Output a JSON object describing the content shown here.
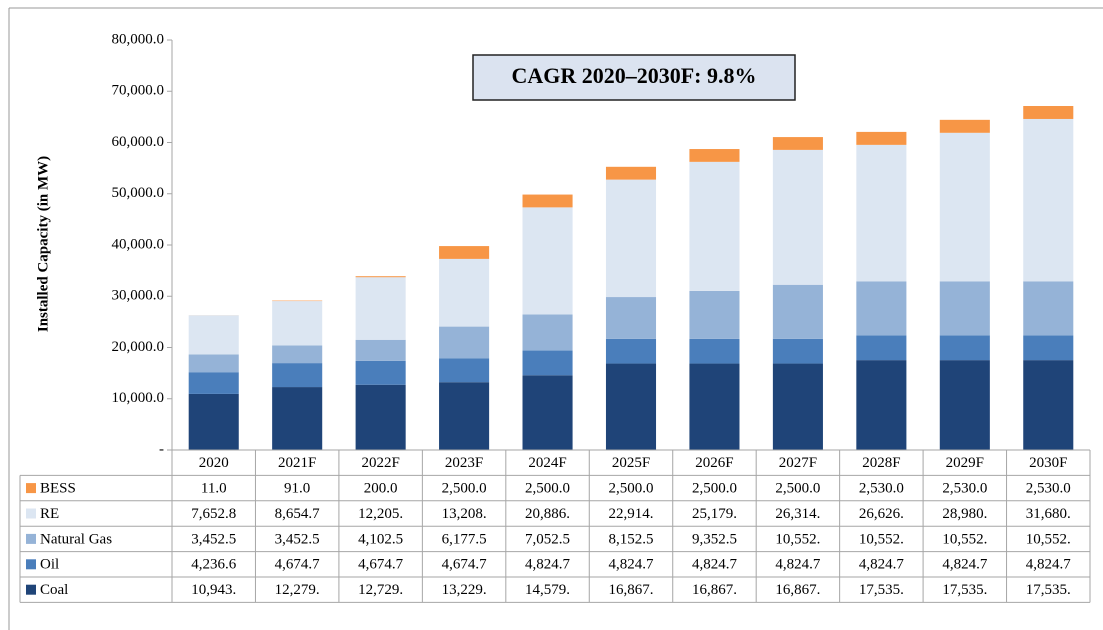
{
  "chart_data": {
    "type": "bar",
    "stacked": true,
    "annotation": "CAGR 2020–2030F: 9.8%",
    "y_label": "Installed Capacity (in MW)",
    "categories": [
      "2020",
      "2021F",
      "2022F",
      "2023F",
      "2024F",
      "2025F",
      "2026F",
      "2027F",
      "2028F",
      "2029F",
      "2030F"
    ],
    "ylim": [
      0,
      80000
    ],
    "yticks": [
      {
        "value": 0,
        "label": "-"
      },
      {
        "value": 10000,
        "label": "10,000.0"
      },
      {
        "value": 20000,
        "label": "20,000.0"
      },
      {
        "value": 30000,
        "label": "30,000.0"
      },
      {
        "value": 40000,
        "label": "40,000.0"
      },
      {
        "value": 50000,
        "label": "50,000.0"
      },
      {
        "value": 60000,
        "label": "60,000.0"
      },
      {
        "value": 70000,
        "label": "70,000.0"
      },
      {
        "value": 80000,
        "label": "80,000.0"
      }
    ],
    "series": [
      {
        "name": "Coal",
        "color": "#1f4478",
        "values": [
          10943,
          12279,
          12729,
          13229,
          14579,
          16867,
          16867,
          16867,
          17535,
          17535,
          17535
        ],
        "value_labels": [
          "10,943.",
          "12,279.",
          "12,729.",
          "13,229.",
          "14,579.",
          "16,867.",
          "16,867.",
          "16,867.",
          "17,535.",
          "17,535.",
          "17,535."
        ]
      },
      {
        "name": "Oil",
        "color": "#4a7ebb",
        "values": [
          4236.6,
          4674.7,
          4674.7,
          4674.7,
          4824.7,
          4824.7,
          4824.7,
          4824.7,
          4824.7,
          4824.7,
          4824.7
        ],
        "value_labels": [
          "4,236.6",
          "4,674.7",
          "4,674.7",
          "4,674.7",
          "4,824.7",
          "4,824.7",
          "4,824.7",
          "4,824.7",
          "4,824.7",
          "4,824.7",
          "4,824.7"
        ]
      },
      {
        "name": "Natural Gas",
        "color": "#95b3d7",
        "values": [
          3452.5,
          3452.5,
          4102.5,
          6177.5,
          7052.5,
          8152.5,
          9352.5,
          10552,
          10552,
          10552,
          10552
        ],
        "value_labels": [
          "3,452.5",
          "3,452.5",
          "4,102.5",
          "6,177.5",
          "7,052.5",
          "8,152.5",
          "9,352.5",
          "10,552.",
          "10,552.",
          "10,552.",
          "10,552."
        ]
      },
      {
        "name": "RE",
        "color": "#dce6f2",
        "values": [
          7652.8,
          8654.7,
          12205,
          13208,
          20886,
          22914,
          25179,
          26314,
          26626,
          28980,
          31680
        ],
        "value_labels": [
          "7,652.8",
          "8,654.7",
          "12,205.",
          "13,208.",
          "20,886.",
          "22,914.",
          "25,179.",
          "26,314.",
          "26,626.",
          "28,980.",
          "31,680."
        ]
      },
      {
        "name": "BESS",
        "color": "#f79646",
        "values": [
          11,
          91,
          200,
          2500,
          2500,
          2500,
          2500,
          2500,
          2530,
          2530,
          2530
        ],
        "value_labels": [
          "11.0",
          "91.0",
          "200.0",
          "2,500.0",
          "2,500.0",
          "2,500.0",
          "2,500.0",
          "2,500.0",
          "2,530.0",
          "2,530.0",
          "2,530.0"
        ]
      }
    ]
  }
}
